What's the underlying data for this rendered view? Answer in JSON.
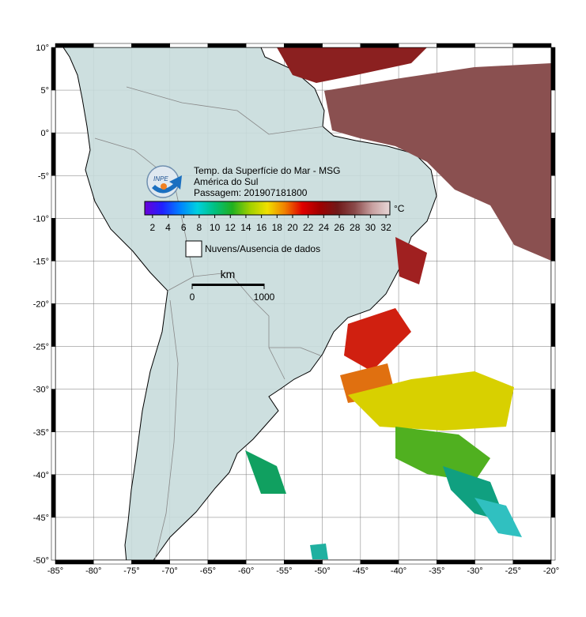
{
  "map": {
    "title_lines": [
      "Temp. da Superfície do Mar - MSG",
      "América do Sul",
      "Passagem: 201907181800"
    ],
    "xlim": [
      -85,
      -20
    ],
    "ylim": [
      -50,
      10
    ],
    "xticks": [
      {
        "value": -85,
        "label": "-85°"
      },
      {
        "value": -80,
        "label": "-80°"
      },
      {
        "value": -75,
        "label": "-75°"
      },
      {
        "value": -70,
        "label": "-70°"
      },
      {
        "value": -65,
        "label": "-65°"
      },
      {
        "value": -60,
        "label": "-60°"
      },
      {
        "value": -55,
        "label": "-55°"
      },
      {
        "value": -50,
        "label": "-50°"
      },
      {
        "value": -45,
        "label": "-45°"
      },
      {
        "value": -40,
        "label": "-40°"
      },
      {
        "value": -35,
        "label": "-35°"
      },
      {
        "value": -30,
        "label": "-30°"
      },
      {
        "value": -25,
        "label": "-25°"
      },
      {
        "value": -20,
        "label": "-20°"
      }
    ],
    "yticks": [
      {
        "value": 10,
        "label": "10°"
      },
      {
        "value": 5,
        "label": "5°"
      },
      {
        "value": 0,
        "label": "0°"
      },
      {
        "value": -5,
        "label": "-5°"
      },
      {
        "value": -10,
        "label": "-10°"
      },
      {
        "value": -15,
        "label": "-15°"
      },
      {
        "value": -20,
        "label": "-20°"
      },
      {
        "value": -25,
        "label": "-25°"
      },
      {
        "value": -30,
        "label": "-30°"
      },
      {
        "value": -35,
        "label": "-35°"
      },
      {
        "value": -40,
        "label": "-40°"
      },
      {
        "value": -45,
        "label": "-45°"
      },
      {
        "value": -50,
        "label": "-50°"
      }
    ],
    "colorbar": {
      "unit": "°C",
      "range": [
        1,
        32.5
      ],
      "ticks": [
        2,
        4,
        6,
        8,
        10,
        12,
        14,
        16,
        18,
        20,
        22,
        24,
        26,
        28,
        30,
        32
      ],
      "colors": [
        "#6a00d8",
        "#2020ff",
        "#0080ff",
        "#00d0e0",
        "#00c080",
        "#20b020",
        "#a0d000",
        "#f0e000",
        "#f08000",
        "#e00000",
        "#a00000",
        "#701818",
        "#8a4a4a",
        "#c8a0a0",
        "#e8d8d8"
      ]
    },
    "legend": "Nuvens/Ausencia de dados",
    "scale_bar": {
      "unit": "km",
      "ticks": [
        0,
        1000
      ]
    }
  }
}
